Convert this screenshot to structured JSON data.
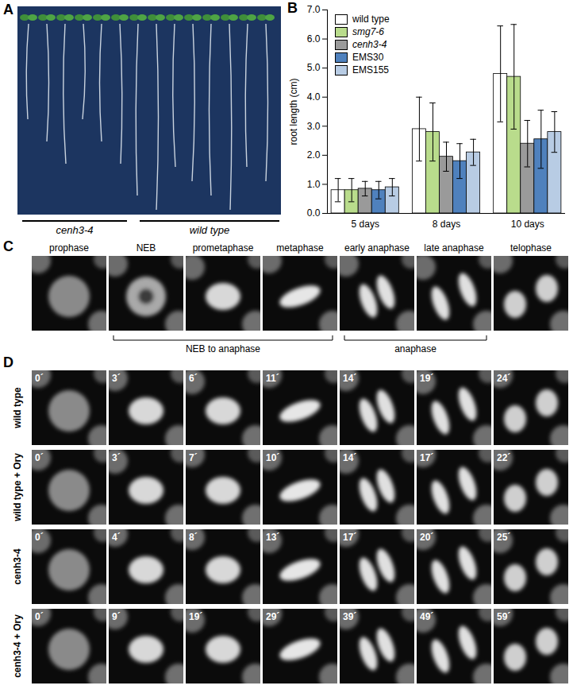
{
  "panels": {
    "A": {
      "label": "A",
      "groups": [
        "cenh3-4",
        "wild type"
      ]
    },
    "B": {
      "label": "B"
    },
    "C": {
      "label": "C",
      "stages": [
        "prophase",
        "NEB",
        "prometaphase",
        "metaphase",
        "early anaphase",
        "late anaphase",
        "telophase"
      ],
      "brackets": [
        "NEB to anaphase",
        "anaphase"
      ]
    },
    "D": {
      "label": "D",
      "rows": [
        {
          "label": "wild type",
          "times": [
            "0´",
            "3´",
            "6´",
            "11´",
            "14´",
            "19´",
            "24´"
          ]
        },
        {
          "label": "wild type + Ory",
          "times": [
            "0´",
            "3´",
            "7´",
            "10´",
            "14´",
            "17´",
            "22´"
          ]
        },
        {
          "label": "cenh3-4",
          "times": [
            "0´",
            "4´",
            "8´",
            "13´",
            "17´",
            "20´",
            "25´"
          ]
        },
        {
          "label": "cenh3-4 + Ory",
          "times": [
            "0´",
            "9´",
            "19´",
            "29´",
            "39´",
            "49´",
            "59´"
          ]
        }
      ]
    }
  },
  "chart_data": {
    "type": "bar",
    "categories": [
      "5 days",
      "8 days",
      "10 days"
    ],
    "y_label": "root length (cm)",
    "ylim": [
      0,
      7
    ],
    "yticks": [
      0,
      1,
      2,
      3,
      4,
      5,
      6,
      7
    ],
    "grid": false,
    "legend": "top-left",
    "series": [
      {
        "name": "wild type",
        "color": "#ffffff",
        "values": [
          0.8,
          2.9,
          4.8
        ],
        "errors": [
          0.4,
          1.1,
          1.65
        ]
      },
      {
        "name": "smg7-6",
        "color": "#b9dc8c",
        "values": [
          0.8,
          2.8,
          4.7
        ],
        "errors": [
          0.4,
          1.0,
          1.8
        ]
      },
      {
        "name": "cenh3-4",
        "color": "#9a9a9a",
        "values": [
          0.85,
          1.95,
          2.4
        ],
        "errors": [
          0.25,
          0.5,
          0.8
        ]
      },
      {
        "name": "EMS30",
        "color": "#4f81bd",
        "values": [
          0.8,
          1.8,
          2.55
        ],
        "errors": [
          0.3,
          0.6,
          1.0
        ]
      },
      {
        "name": "EMS155",
        "color": "#b8cce4",
        "values": [
          0.9,
          2.1,
          2.8
        ],
        "errors": [
          0.3,
          0.45,
          0.7
        ]
      }
    ]
  }
}
